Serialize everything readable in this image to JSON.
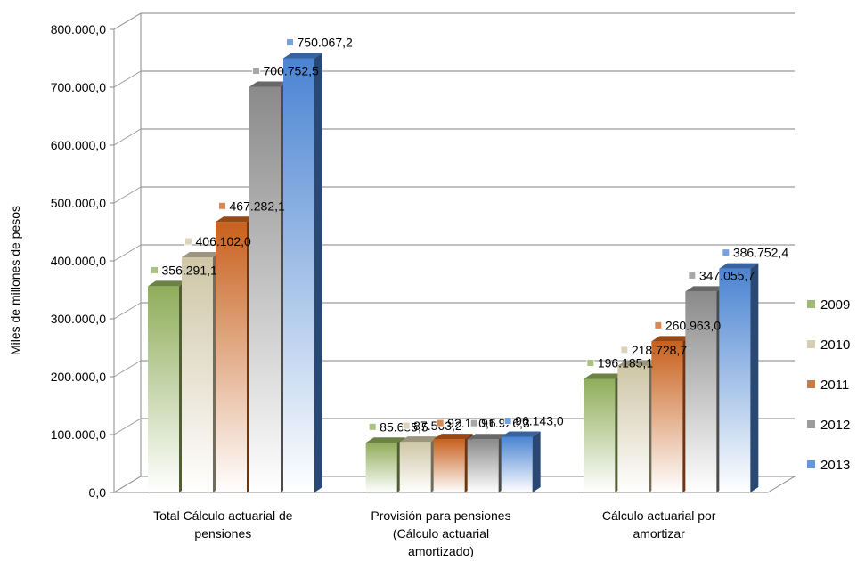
{
  "chart_data": {
    "type": "bar",
    "title": "",
    "xlabel": "",
    "ylabel": "Miles de millones de pesos",
    "ylim": [
      0,
      800000
    ],
    "y_ticks": [
      "0,0",
      "100.000,0",
      "200.000,0",
      "300.000,0",
      "400.000,0",
      "500.000,0",
      "600.000,0",
      "700.000,0",
      "800.000,0"
    ],
    "grid": true,
    "legend_position": "right",
    "categories": [
      [
        "Total Cálculo actuarial de",
        "pensiones"
      ],
      [
        "Provisión para pensiones",
        "(Cálculo actuarial",
        "amortizado)"
      ],
      [
        "Cálculo actuarial por",
        "amortizar"
      ]
    ],
    "series": [
      {
        "name": "2009",
        "values": [
          356291.1,
          85685.5,
          196185.1
        ],
        "labels": [
          "356.291,1",
          "85.685,5",
          "196.185,1"
        ],
        "color": "#8fad5a"
      },
      {
        "name": "2010",
        "values": [
          406102.0,
          87563.2,
          218728.7
        ],
        "labels": [
          "406.102,0",
          "87.563,2",
          "218.728,7"
        ],
        "color": "#cfc6a6"
      },
      {
        "name": "2011",
        "values": [
          467282.1,
          92180.6,
          260963.0
        ],
        "labels": [
          "467.282,1",
          "92.180,6",
          "260.963,0"
        ],
        "color": "#c8601c"
      },
      {
        "name": "2012",
        "values": [
          700752.5,
          91926.3,
          347055.7
        ],
        "labels": [
          "700.752,5",
          "91.926,3",
          "347.055,7"
        ],
        "color": "#8a8a8a"
      },
      {
        "name": "2013",
        "values": [
          750067.2,
          96143.0,
          386752.4
        ],
        "labels": [
          "750.067,2",
          "96.143,0",
          "386.752,4"
        ],
        "color": "#4a84d2"
      }
    ]
  }
}
